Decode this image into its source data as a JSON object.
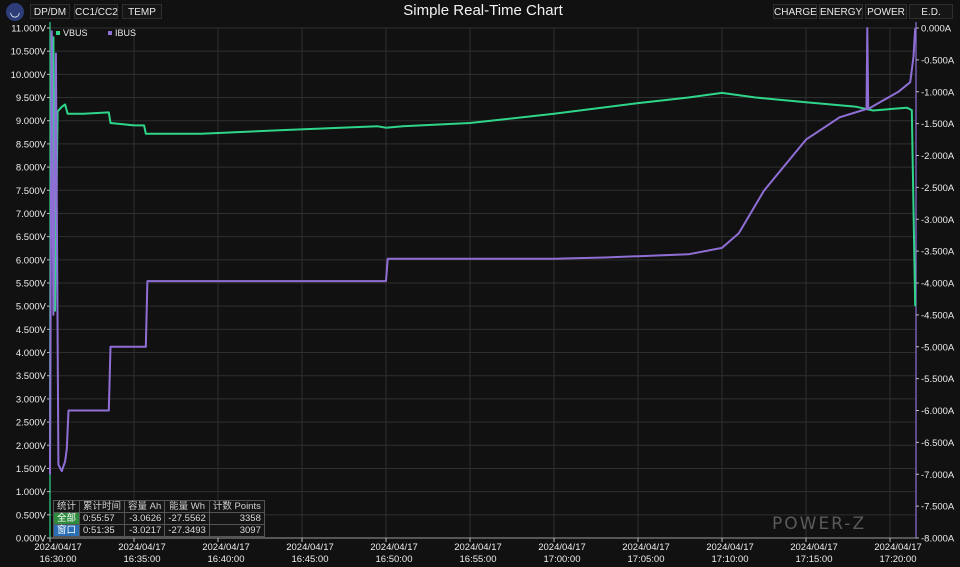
{
  "toolbar": {
    "tabs": [
      "DP/DM",
      "CC1/CC2",
      "TEMP"
    ],
    "right_tabs": [
      "CHARGE",
      "ENERGY",
      "POWER",
      "E.D."
    ]
  },
  "chart_data": {
    "type": "line",
    "title": "Simple Real-Time Chart",
    "x_ticks": [
      [
        "2024/04/17",
        "16:30:00"
      ],
      [
        "2024/04/17",
        "16:35:00"
      ],
      [
        "2024/04/17",
        "16:40:00"
      ],
      [
        "2024/04/17",
        "16:45:00"
      ],
      [
        "2024/04/17",
        "16:50:00"
      ],
      [
        "2024/04/17",
        "16:55:00"
      ],
      [
        "2024/04/17",
        "17:00:00"
      ],
      [
        "2024/04/17",
        "17:05:00"
      ],
      [
        "2024/04/17",
        "17:10:00"
      ],
      [
        "2024/04/17",
        "17:15:00"
      ],
      [
        "2024/04/17",
        "17:20:00"
      ]
    ],
    "x_range_min": [
      0,
      51.5
    ],
    "y_left": {
      "unit": "V",
      "range": [
        0,
        11
      ],
      "ticks": [
        "0.000V",
        "0.500V",
        "1.000V",
        "1.500V",
        "2.000V",
        "2.500V",
        "3.000V",
        "3.500V",
        "4.000V",
        "4.500V",
        "5.000V",
        "5.500V",
        "6.000V",
        "6.500V",
        "7.000V",
        "7.500V",
        "8.000V",
        "8.500V",
        "9.000V",
        "9.500V",
        "10.000V",
        "10.500V",
        "11.000V"
      ]
    },
    "y_right": {
      "unit": "A",
      "range": [
        -8,
        0
      ],
      "ticks": [
        "0.000A",
        "-0.500A",
        "-1.000A",
        "-1.500A",
        "-2.000A",
        "-2.500A",
        "-3.000A",
        "-3.500A",
        "-4.000A",
        "-4.500A",
        "-5.000A",
        "-5.500A",
        "-6.000A",
        "-6.500A",
        "-7.000A",
        "-7.500A",
        "-8.000A"
      ]
    },
    "legend": "top-left",
    "grid": true,
    "series": [
      {
        "name": "VBUS",
        "color": "#2fd68a",
        "axis": "left",
        "points": [
          [
            0,
            1.6
          ],
          [
            0.05,
            9.0
          ],
          [
            0.12,
            8.2
          ],
          [
            0.2,
            10.8
          ],
          [
            0.3,
            4.9
          ],
          [
            0.45,
            9.2
          ],
          [
            0.7,
            9.3
          ],
          [
            0.9,
            9.35
          ],
          [
            1.05,
            9.15
          ],
          [
            2,
            9.15
          ],
          [
            3.5,
            9.18
          ],
          [
            3.6,
            8.95
          ],
          [
            5,
            8.9
          ],
          [
            5.6,
            8.9
          ],
          [
            5.7,
            8.72
          ],
          [
            8,
            8.72
          ],
          [
            9,
            8.72
          ],
          [
            11,
            8.75
          ],
          [
            14,
            8.8
          ],
          [
            19.5,
            8.88
          ],
          [
            20,
            8.85
          ],
          [
            21,
            8.88
          ],
          [
            25,
            8.95
          ],
          [
            30,
            9.15
          ],
          [
            35,
            9.38
          ],
          [
            38,
            9.5
          ],
          [
            40,
            9.6
          ],
          [
            42,
            9.5
          ],
          [
            45,
            9.4
          ],
          [
            48,
            9.3
          ],
          [
            49,
            9.22
          ],
          [
            51,
            9.28
          ],
          [
            51.3,
            9.23
          ],
          [
            51.5,
            5.0
          ]
        ]
      },
      {
        "name": "IBUS",
        "color": "#8f6fd6",
        "axis": "right",
        "points": [
          [
            0,
            -7.0
          ],
          [
            0.1,
            -0.05
          ],
          [
            0.2,
            -4.5
          ],
          [
            0.35,
            -0.4
          ],
          [
            0.5,
            -6.85
          ],
          [
            0.7,
            -6.95
          ],
          [
            0.9,
            -6.8
          ],
          [
            1.0,
            -6.6
          ],
          [
            1.1,
            -6.0
          ],
          [
            3.5,
            -6.0
          ],
          [
            3.6,
            -5.0
          ],
          [
            5.7,
            -5.0
          ],
          [
            5.8,
            -3.97
          ],
          [
            20,
            -3.97
          ],
          [
            20.1,
            -3.62
          ],
          [
            30,
            -3.62
          ],
          [
            33,
            -3.6
          ],
          [
            38,
            -3.55
          ],
          [
            40,
            -3.45
          ],
          [
            41,
            -3.22
          ],
          [
            42.5,
            -2.55
          ],
          [
            45,
            -1.75
          ],
          [
            47,
            -1.4
          ],
          [
            48.6,
            -1.27
          ],
          [
            48.65,
            0.0
          ],
          [
            48.7,
            -1.27
          ],
          [
            49.5,
            -1.15
          ],
          [
            50.5,
            -1.0
          ],
          [
            51.2,
            -0.85
          ],
          [
            51.4,
            -0.45
          ],
          [
            51.5,
            0.0
          ]
        ]
      }
    ]
  },
  "stats": {
    "headers": [
      "统计",
      "累计时间",
      "容量 Ah",
      "能量 Wh",
      "计数 Points"
    ],
    "rows": [
      [
        "全部",
        "0:55:57",
        "-3.0626",
        "-27.5562",
        "3358"
      ],
      [
        "窗口",
        "0:51:35",
        "-3.0217",
        "-27.3493",
        "3097"
      ]
    ]
  },
  "brand": "POWER-Z",
  "colors": {
    "background": "#111111",
    "grid": "#2f2f2f",
    "vbus": "#2fd68a",
    "ibus": "#8f6fd6"
  }
}
